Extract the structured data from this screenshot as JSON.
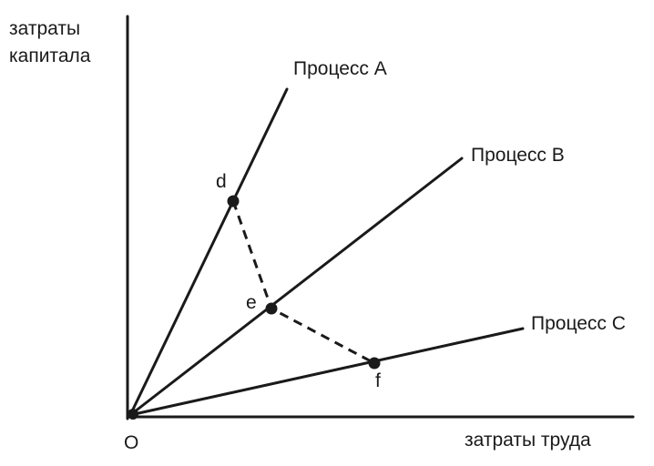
{
  "axes": {
    "y_label_line1": "затраты",
    "y_label_line2": "капитала",
    "x_label": "затраты труда",
    "origin_label": "O"
  },
  "processes": [
    {
      "label": "Процесс A"
    },
    {
      "label": "Процесс B"
    },
    {
      "label": "Процесс C"
    }
  ],
  "points": [
    {
      "label": "d",
      "on": "Процесс A"
    },
    {
      "label": "e",
      "on": "Процесс B"
    },
    {
      "label": "f",
      "on": "Процесс C"
    }
  ],
  "isoquant": {
    "style": "dashed",
    "connects": [
      "d",
      "e",
      "f"
    ]
  }
}
